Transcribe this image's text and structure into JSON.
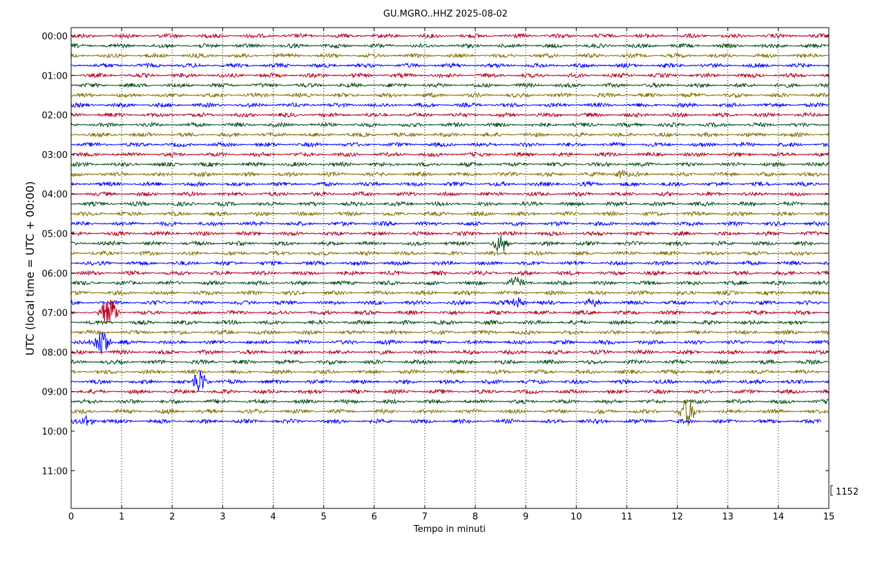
{
  "chart_data": {
    "type": "line",
    "title": "GU.MGRO..HHZ 2025-08-02",
    "xlabel": "Tempo in minuti",
    "ylabel": "UTC (local time = UTC + 00:00)",
    "xlim": [
      0,
      15
    ],
    "x_ticks": [
      "0",
      "1",
      "2",
      "3",
      "4",
      "5",
      "6",
      "7",
      "8",
      "9",
      "10",
      "11",
      "12",
      "13",
      "14",
      "15"
    ],
    "y_ticks": [
      "00:00",
      "01:00",
      "02:00",
      "03:00",
      "04:00",
      "05:00",
      "06:00",
      "07:00",
      "08:00",
      "09:00",
      "10:00",
      "11:00"
    ],
    "trace_colors": [
      "#b2001e",
      "#004c12",
      "#807000",
      "#0000ff"
    ],
    "scale_label": "1152",
    "grid": "vertical dotted lines at each minute",
    "traces_per_hour": 4,
    "trace_count": 40,
    "last_trace_end_minute": 14.85,
    "events": [
      {
        "trace": 14,
        "center_minute": 10.9,
        "amplitude": 1.4
      },
      {
        "trace": 21,
        "center_minute": 8.5,
        "amplitude": 3.0
      },
      {
        "trace": 25,
        "center_minute": 8.8,
        "amplitude": 1.8
      },
      {
        "trace": 27,
        "center_minute": 8.85,
        "amplitude": 1.6
      },
      {
        "trace": 27,
        "center_minute": 10.3,
        "amplitude": 1.5
      },
      {
        "trace": 28,
        "center_minute": 0.75,
        "amplitude": 6.0
      },
      {
        "trace": 31,
        "center_minute": 0.6,
        "amplitude": 5.0
      },
      {
        "trace": 35,
        "center_minute": 2.55,
        "amplitude": 4.0
      },
      {
        "trace": 38,
        "center_minute": 12.2,
        "amplitude": 5.0
      },
      {
        "trace": 39,
        "center_minute": 0.3,
        "amplitude": 1.8
      }
    ]
  }
}
